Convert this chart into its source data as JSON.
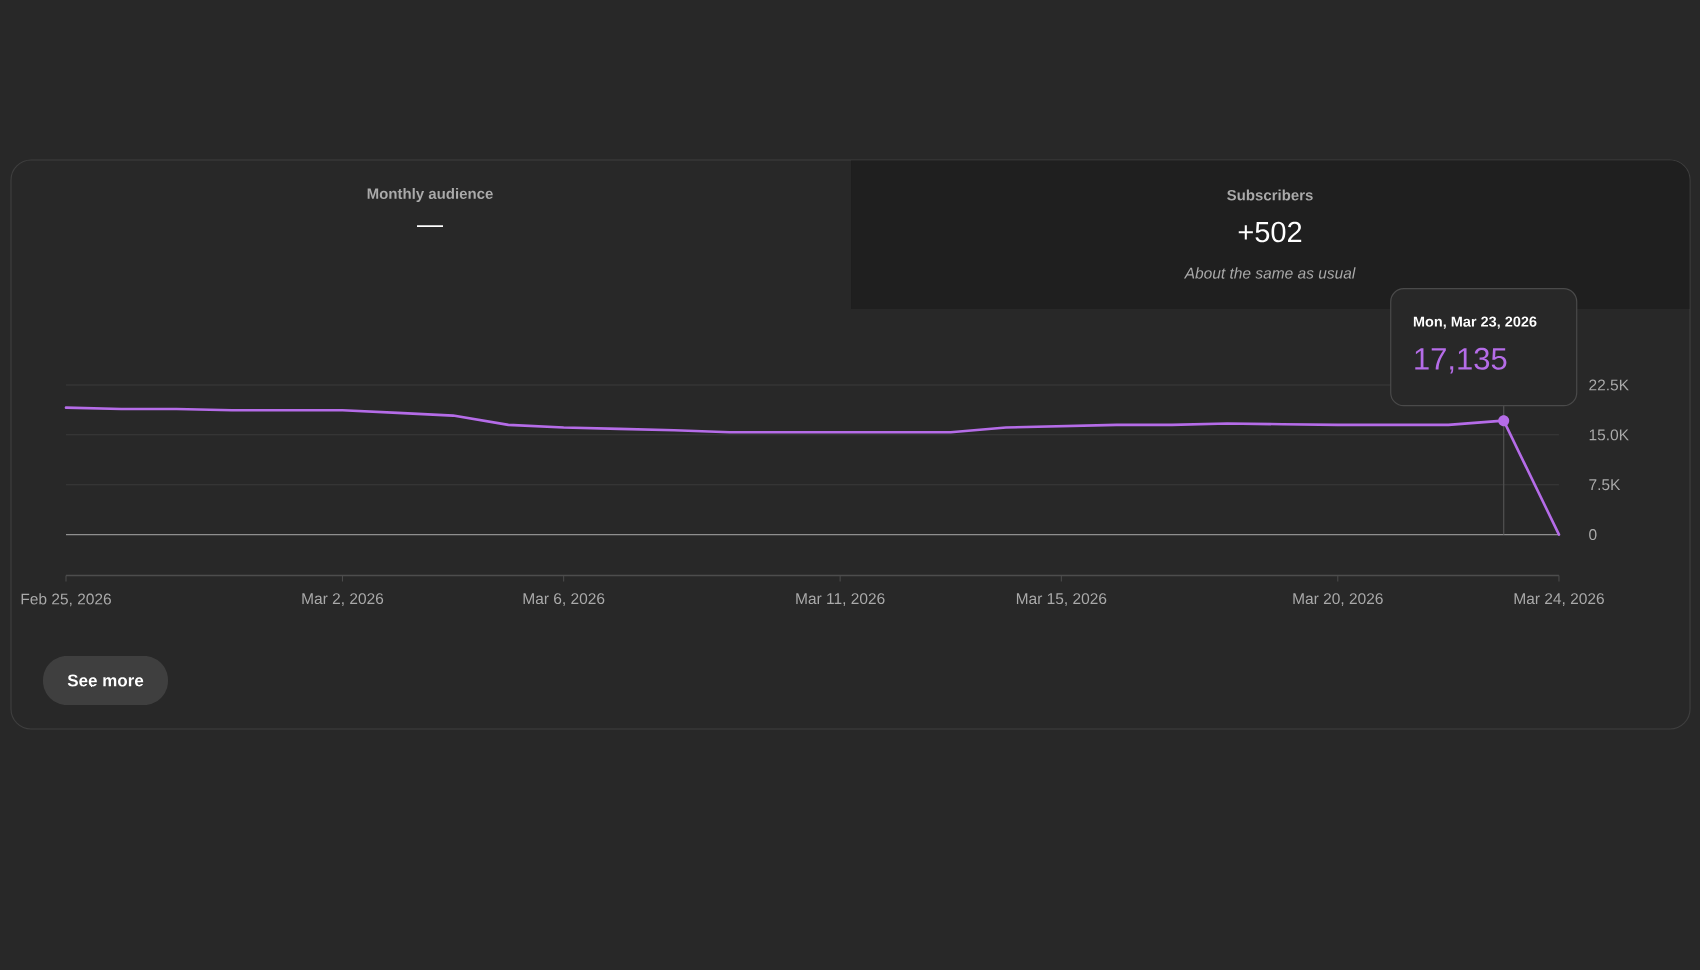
{
  "chart_data": {
    "type": "line",
    "title": "Subscribers",
    "subtitle": "+502",
    "x": [
      "2026-02-25",
      "2026-02-26",
      "2026-02-27",
      "2026-02-28",
      "2026-03-01",
      "2026-03-02",
      "2026-03-03",
      "2026-03-04",
      "2026-03-05",
      "2026-03-06",
      "2026-03-07",
      "2026-03-08",
      "2026-03-09",
      "2026-03-10",
      "2026-03-11",
      "2026-03-12",
      "2026-03-13",
      "2026-03-14",
      "2026-03-15",
      "2026-03-16",
      "2026-03-17",
      "2026-03-18",
      "2026-03-19",
      "2026-03-20",
      "2026-03-21",
      "2026-03-22",
      "2026-03-23",
      "2026-03-24"
    ],
    "series": [
      {
        "color": "#b56ce8",
        "values": [
          19100,
          18900,
          18900,
          18700,
          18700,
          18700,
          18300,
          17900,
          16500,
          16100,
          15900,
          15700,
          15400,
          15400,
          15400,
          15400,
          15400,
          16100,
          16300,
          16500,
          16500,
          16700,
          16600,
          16500,
          16500,
          16500,
          17135,
          0
        ],
        "value_labels": [
          null,
          null,
          null,
          null,
          null,
          null,
          null,
          null,
          null,
          null,
          null,
          null,
          null,
          null,
          null,
          null,
          null,
          null,
          null,
          null,
          null,
          null,
          null,
          null,
          null,
          null,
          "17,135",
          null
        ]
      }
    ],
    "xlim": [
      "2026-02-25",
      "2026-03-24"
    ],
    "xticks": [
      {
        "value": "2026-02-25",
        "label": "Feb 25, 2026"
      },
      {
        "value": "2026-03-02",
        "label": "Mar 2, 2026"
      },
      {
        "value": "2026-03-06",
        "label": "Mar 6, 2026"
      },
      {
        "value": "2026-03-11",
        "label": "Mar 11, 2026"
      },
      {
        "value": "2026-03-15",
        "label": "Mar 15, 2026"
      },
      {
        "value": "2026-03-20",
        "label": "Mar 20, 2026"
      },
      {
        "value": "2026-03-24",
        "label": "Mar 24, 2026"
      }
    ],
    "ylim": [
      0,
      22500
    ],
    "yticks": [
      0,
      {
        "value": 7500,
        "label": "7.5K"
      },
      {
        "value": 15000,
        "label": "15.0K"
      },
      {
        "value": 22500,
        "label": "22.5K"
      }
    ],
    "grid": "y",
    "marker": "none",
    "ref_lines": [
      {
        "axis": "x",
        "value": "2026-03-23",
        "color": "#4f4f4f"
      }
    ],
    "annotations": [
      "Monthly audience",
      "—",
      "About the same as usual",
      "Mon, Mar 23, 2026",
      "See more"
    ]
  }
}
